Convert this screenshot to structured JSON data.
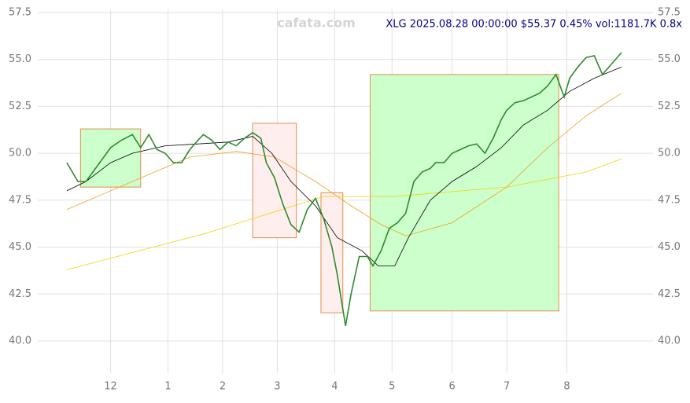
{
  "chart_data": {
    "type": "line",
    "title": "XLG 2025.08.28 00:00:00 $55.37 0.45% vol:1181.7K 0.8x",
    "watermark": "cafata.com",
    "xlim": [
      0,
      203
    ],
    "ylim": [
      38.9,
      57.5
    ],
    "xticks": [
      {
        "value": 16,
        "label": "12"
      },
      {
        "value": 37,
        "label": "1"
      },
      {
        "value": 57,
        "label": "2"
      },
      {
        "value": 77,
        "label": "3"
      },
      {
        "value": 98,
        "label": "4"
      },
      {
        "value": 119,
        "label": "5"
      },
      {
        "value": 141,
        "label": "6"
      },
      {
        "value": 161,
        "label": "7"
      },
      {
        "value": 183,
        "label": "8"
      }
    ],
    "yticks": [
      {
        "value": 40,
        "label": "40.0"
      },
      {
        "value": 42.5,
        "label": "42.5"
      },
      {
        "value": 45,
        "label": "45.0"
      },
      {
        "value": 47.5,
        "label": "47.5"
      },
      {
        "value": 50,
        "label": "50.0"
      },
      {
        "value": 52.5,
        "label": "52.5"
      },
      {
        "value": 55,
        "label": "55.0"
      },
      {
        "value": 57.5,
        "label": "57.5"
      }
    ],
    "grid": true,
    "boxes": [
      {
        "x": [
          5,
          27
        ],
        "y": [
          48.2,
          51.3
        ],
        "color": "#ccffcc"
      },
      {
        "x": [
          68,
          84
        ],
        "y": [
          45.5,
          51.6
        ],
        "color": "#ffeeee"
      },
      {
        "x": [
          93,
          101
        ],
        "y": [
          41.5,
          47.9
        ],
        "color": "#ffeeee"
      },
      {
        "x": [
          111,
          180
        ],
        "y": [
          41.6,
          54.2
        ],
        "color": "#ccffcc"
      }
    ],
    "series": [
      {
        "color": "#f5d200",
        "x": [
          0,
          50,
          94,
          120,
          161,
          190,
          203
        ],
        "values": [
          43.8,
          45.7,
          47.7,
          47.7,
          48.2,
          49.0,
          49.7
        ]
      },
      {
        "color": "#f0a020",
        "x": [
          0,
          24,
          45,
          62,
          76,
          91,
          104,
          115,
          124,
          141,
          161,
          176,
          190,
          203
        ],
        "values": [
          47.0,
          48.5,
          49.8,
          50.1,
          49.8,
          48.5,
          47.2,
          46.2,
          45.6,
          46.3,
          48.2,
          50.3,
          52.0,
          53.2
        ]
      },
      {
        "color": "#000000",
        "x": [
          0,
          7,
          16,
          24,
          36,
          48,
          59,
          68,
          75,
          82,
          91,
          99,
          108,
          114,
          120,
          125,
          133,
          141,
          150,
          159,
          167,
          176,
          184,
          193,
          203
        ],
        "values": [
          48.0,
          48.5,
          49.5,
          50.0,
          50.4,
          50.5,
          50.6,
          50.9,
          50.0,
          48.5,
          47.2,
          45.5,
          44.8,
          44.0,
          44.0,
          45.5,
          47.5,
          48.5,
          49.3,
          50.3,
          51.5,
          52.3,
          53.3,
          54.0,
          54.6
        ]
      },
      {
        "color": "#2e8b2e",
        "x": [
          0,
          4,
          7,
          12,
          16,
          20,
          24,
          27,
          30,
          33,
          36,
          39,
          42,
          45,
          48,
          50,
          53,
          56,
          59,
          62,
          65,
          68,
          71,
          73,
          76,
          79,
          82,
          85,
          88,
          91,
          94,
          97,
          99,
          102,
          104,
          107,
          110,
          112,
          115,
          118,
          121,
          124,
          127,
          130,
          133,
          135,
          138,
          141,
          144,
          147,
          150,
          153,
          156,
          159,
          161,
          164,
          167,
          170,
          173,
          176,
          179,
          182,
          184,
          187,
          190,
          193,
          196,
          199,
          202,
          203
        ],
        "values": [
          49.5,
          48.5,
          48.5,
          49.5,
          50.3,
          50.7,
          51.0,
          50.3,
          51.0,
          50.2,
          50.0,
          49.5,
          49.5,
          50.2,
          50.7,
          51.0,
          50.7,
          50.2,
          50.6,
          50.4,
          50.8,
          51.1,
          50.8,
          49.5,
          48.7,
          47.3,
          46.2,
          45.8,
          47.0,
          47.6,
          46.5,
          45.0,
          43.5,
          40.8,
          42.5,
          44.5,
          44.5,
          44.0,
          44.8,
          46.0,
          46.3,
          46.8,
          48.5,
          49.0,
          49.2,
          49.5,
          49.5,
          50.0,
          50.2,
          50.4,
          50.5,
          50.0,
          50.8,
          51.8,
          52.3,
          52.7,
          52.8,
          53.0,
          53.2,
          53.6,
          54.2,
          53.0,
          54.0,
          54.6,
          55.1,
          55.2,
          54.2,
          54.7,
          55.2,
          55.37
        ]
      }
    ]
  }
}
